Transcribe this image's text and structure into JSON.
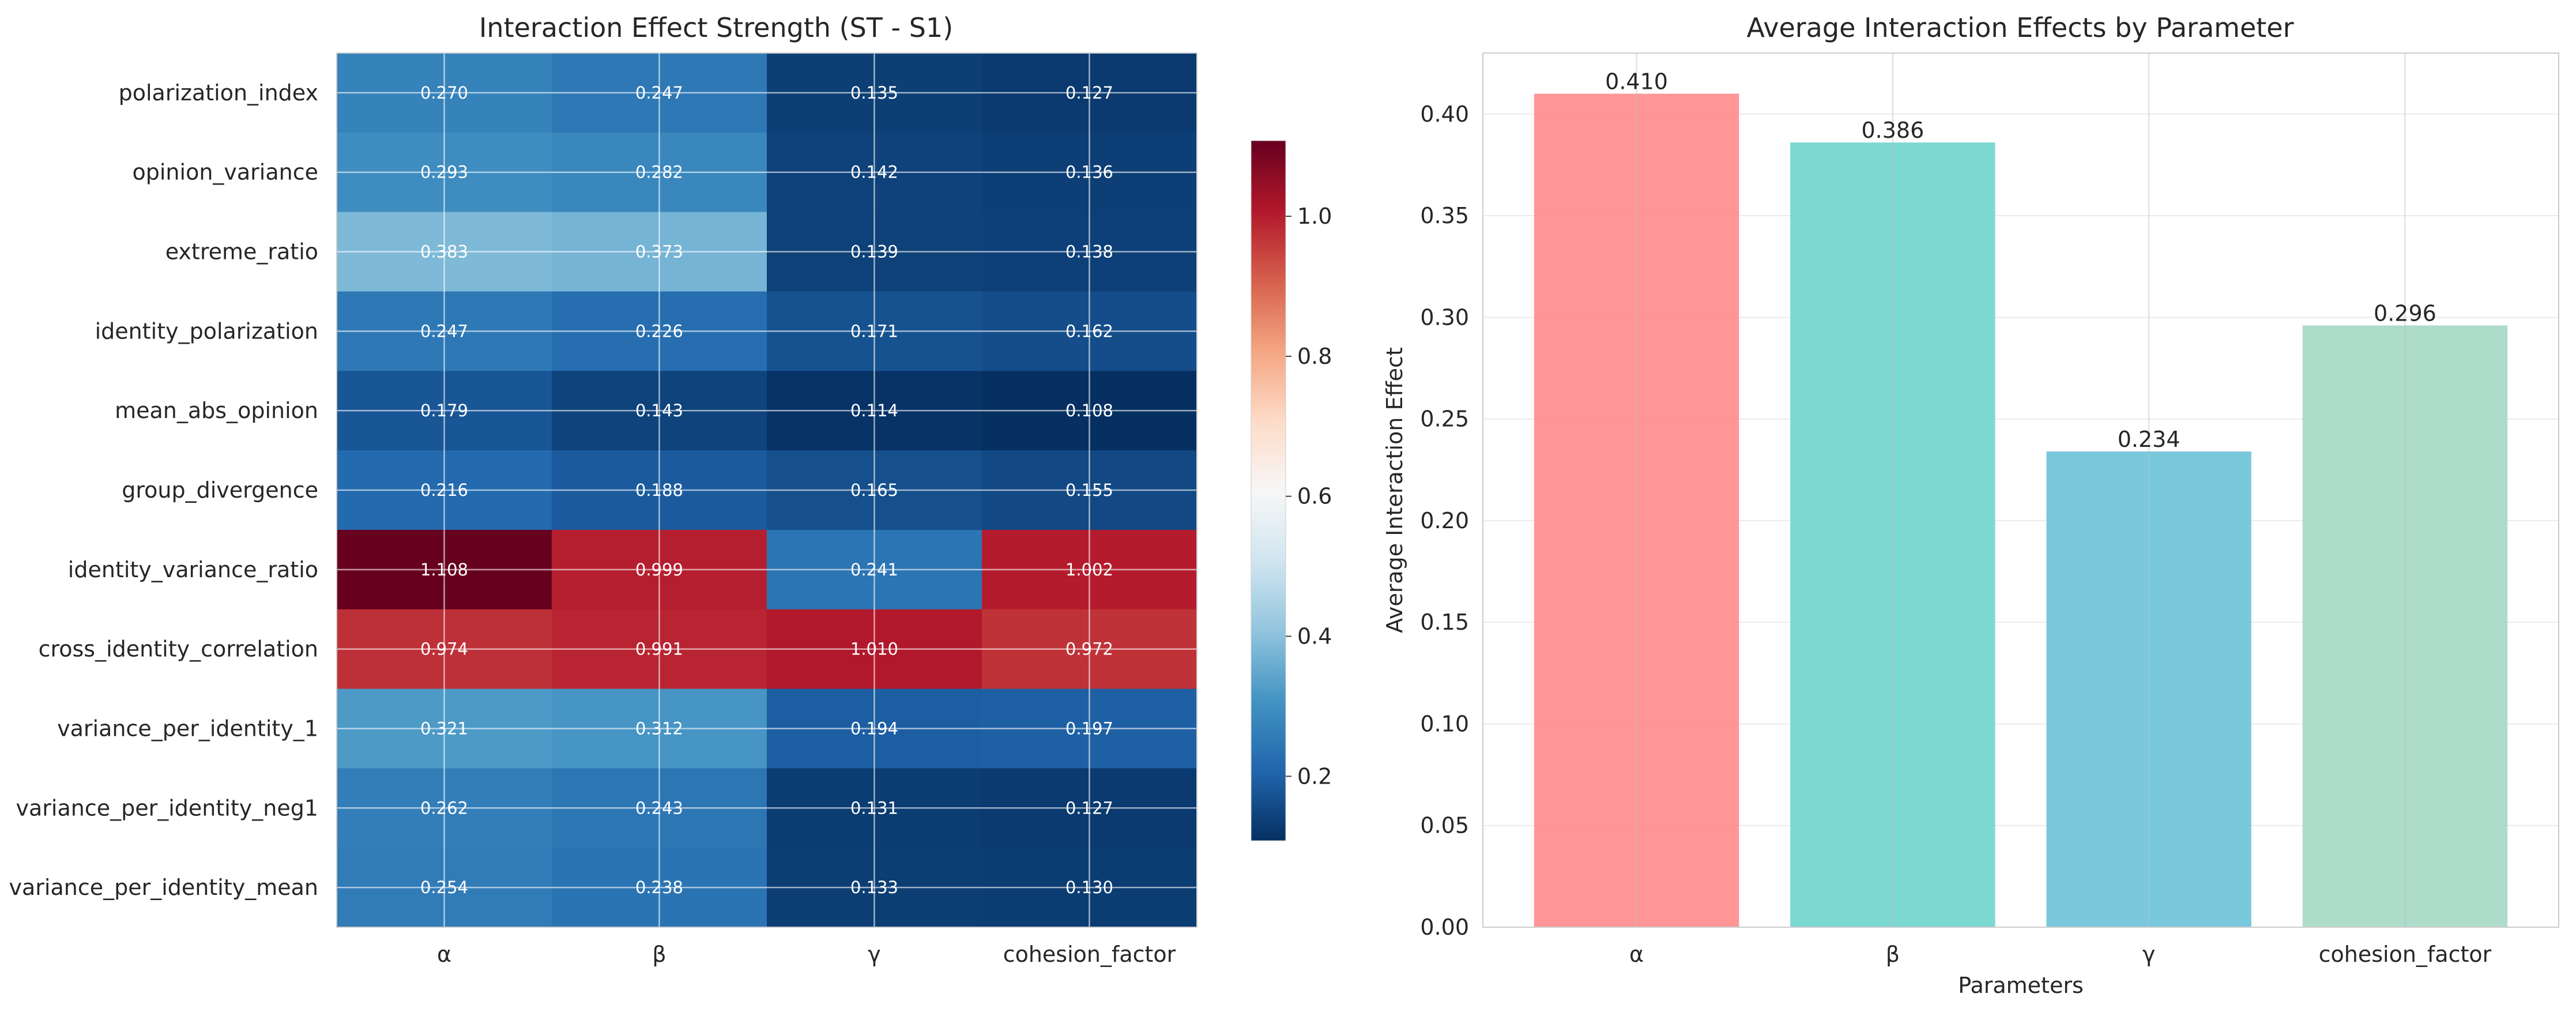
{
  "chart_data": [
    {
      "type": "heatmap",
      "title": "Interaction Effect Strength (ST - S1)",
      "columns": [
        "α",
        "β",
        "γ",
        "cohesion_factor"
      ],
      "rows": [
        "polarization_index",
        "opinion_variance",
        "extreme_ratio",
        "identity_polarization",
        "mean_abs_opinion",
        "group_divergence",
        "identity_variance_ratio",
        "cross_identity_correlation",
        "variance_per_identity_1",
        "variance_per_identity_neg1",
        "variance_per_identity_mean"
      ],
      "values": [
        [
          0.27,
          0.247,
          0.135,
          0.127
        ],
        [
          0.293,
          0.282,
          0.142,
          0.136
        ],
        [
          0.383,
          0.373,
          0.139,
          0.138
        ],
        [
          0.247,
          0.226,
          0.171,
          0.162
        ],
        [
          0.179,
          0.143,
          0.114,
          0.108
        ],
        [
          0.216,
          0.188,
          0.165,
          0.155
        ],
        [
          1.108,
          0.999,
          0.241,
          1.002
        ],
        [
          0.974,
          0.991,
          1.01,
          0.972
        ],
        [
          0.321,
          0.312,
          0.194,
          0.197
        ],
        [
          0.262,
          0.243,
          0.131,
          0.127
        ],
        [
          0.254,
          0.238,
          0.133,
          0.13
        ]
      ],
      "value_labels": [
        [
          "0.270",
          "0.247",
          "0.135",
          "0.127"
        ],
        [
          "0.293",
          "0.282",
          "0.142",
          "0.136"
        ],
        [
          "0.383",
          "0.373",
          "0.139",
          "0.138"
        ],
        [
          "0.247",
          "0.226",
          "0.171",
          "0.162"
        ],
        [
          "0.179",
          "0.143",
          "0.114",
          "0.108"
        ],
        [
          "0.216",
          "0.188",
          "0.165",
          "0.155"
        ],
        [
          "1.108",
          "0.999",
          "0.241",
          "1.002"
        ],
        [
          "0.974",
          "0.991",
          "1.010",
          "0.972"
        ],
        [
          "0.321",
          "0.312",
          "0.194",
          "0.197"
        ],
        [
          "0.262",
          "0.243",
          "0.131",
          "0.127"
        ],
        [
          "0.254",
          "0.238",
          "0.133",
          "0.130"
        ]
      ],
      "colormap": "RdBu_r",
      "vmin": 0.108,
      "vmax": 1.108,
      "colorbar_ticks": [
        "0.2",
        "0.4",
        "0.6",
        "0.8",
        "1.0"
      ],
      "grid": true
    },
    {
      "type": "bar",
      "title": "Average Interaction Effects by Parameter",
      "categories": [
        "α",
        "β",
        "γ",
        "cohesion_factor"
      ],
      "values": [
        0.41,
        0.386,
        0.234,
        0.296
      ],
      "value_labels": [
        "0.410",
        "0.386",
        "0.234",
        "0.296"
      ],
      "colors": [
        "#ff8a8a",
        "#6dd5cd",
        "#6bc2d8",
        "#a4d8c4"
      ],
      "xlabel": "Parameters",
      "ylabel": "Average Interaction Effect",
      "ylim": [
        0,
        0.43
      ],
      "yticks": [
        "0.00",
        "0.05",
        "0.10",
        "0.15",
        "0.20",
        "0.25",
        "0.30",
        "0.35",
        "0.40"
      ],
      "grid": true
    }
  ]
}
